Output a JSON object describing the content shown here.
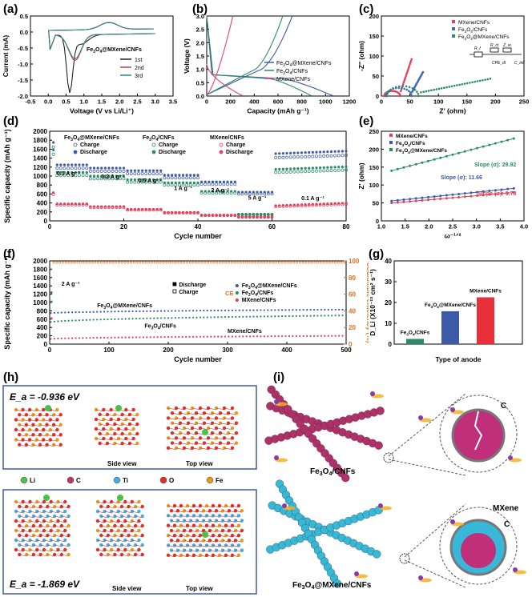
{
  "panel_labels": [
    "(a)",
    "(b)",
    "(c)",
    "(d)",
    "(e)",
    "(f)",
    "(g)",
    "(h)",
    "(i)"
  ],
  "chart_data": [
    {
      "id": "a",
      "type": "line",
      "xlabel": "Voltage (V vs Li/Li⁺)",
      "ylabel": "Current (mA)",
      "xlim": [
        -0.5,
        3.5
      ],
      "ylim": [
        -2.0,
        0.5
      ],
      "xticks": [
        "-0.5",
        "0.0",
        "0.5",
        "1.0",
        "1.5",
        "2.0",
        "2.5",
        "3.0",
        "3.5"
      ],
      "yticks": [
        "0.5",
        "0.0",
        "-0.5",
        "-1.0",
        "-1.5",
        "-2.0"
      ],
      "annotation": "Fe3O4@MXene/CNFs",
      "series": [
        {
          "name": "1st",
          "color": "#222222",
          "kind": "cv1"
        },
        {
          "name": "2nd",
          "color": "#d63a3a",
          "kind": "cv2"
        },
        {
          "name": "3rd",
          "color": "#2e8a8a",
          "kind": "cv3"
        }
      ]
    },
    {
      "id": "b",
      "type": "line",
      "xlabel": "Capacity (mAh g⁻¹)",
      "ylabel": "Voltage (V)",
      "xlim": [
        0,
        1200
      ],
      "ylim": [
        0,
        3.0
      ],
      "xticks": [
        "0",
        "200",
        "400",
        "600",
        "800",
        "1000",
        "1200"
      ],
      "yticks": [
        "0.0",
        "0.5",
        "1.0",
        "1.5",
        "2.0",
        "2.5",
        "3.0"
      ],
      "series": [
        {
          "name": "Fe3O4@MXene/CNFs",
          "color": "#3d5aa8",
          "charge_end": 720,
          "discharge_end": 1060
        },
        {
          "name": "Fe3O4/CNFs",
          "color": "#2a8a6a",
          "charge_end": 640,
          "discharge_end": 880
        },
        {
          "name": "MXene/CNFs",
          "color": "#e0407a",
          "charge_end": 220,
          "discharge_end": 300
        }
      ]
    },
    {
      "id": "c",
      "type": "scatter",
      "xlabel": "Z' (ohm)",
      "ylabel": "-Z'' (ohm)",
      "xlim": [
        0,
        250
      ],
      "ylim": [
        0,
        200
      ],
      "xticks": [
        "0",
        "50",
        "100",
        "150",
        "200",
        "250"
      ],
      "yticks": [
        "0",
        "50",
        "100",
        "150",
        "200"
      ],
      "circuit_labels": [
        "R_f",
        "R_ct",
        "Z_w",
        "CPE_dl",
        "C_int"
      ],
      "series": [
        {
          "name": "MXene/CNFs",
          "color": "#e0405a"
        },
        {
          "name": "Fe3O4/CNFs",
          "color": "#3d6ab8"
        },
        {
          "name": "Fe3O4@MXene/CNFs",
          "color": "#2a8a6a"
        }
      ]
    },
    {
      "id": "d",
      "type": "scatter",
      "xlabel": "Cycle number",
      "ylabel": "Specific capacity (mAh g⁻¹)",
      "xlim": [
        0,
        80
      ],
      "ylim": [
        0,
        2000
      ],
      "xticks": [
        "0",
        "20",
        "40",
        "60",
        "80"
      ],
      "yticks": [
        "0",
        "200",
        "400",
        "600",
        "800",
        "1000",
        "1200",
        "1400",
        "1600",
        "1800",
        "2000"
      ],
      "rate_labels": [
        "0.1 A g⁻¹",
        "0.2 A g⁻¹",
        "0.5 A g⁻¹",
        "1 A g⁻¹",
        "2 A g⁻¹",
        "5 A g⁻¹",
        "0.1 A g⁻¹"
      ],
      "groups": [
        "Fe3O4@MXene/CNFs",
        "Fe3O4/CNFs",
        "MXene/CNFs"
      ],
      "legend_entries": [
        "Charge",
        "Discharge"
      ],
      "step_values": {
        "Fe3O4@MXene/CNFs": [
          1250,
          1180,
          1120,
          1020,
          870,
          640,
          1500
        ],
        "Fe3O4/CNFs": [
          1080,
          1000,
          920,
          850,
          660,
          150,
          1150
        ],
        "MXene/CNFs": [
          380,
          320,
          260,
          190,
          130,
          90,
          340
        ]
      },
      "colors": {
        "Fe3O4@MXene/CNFs": "#3d5aa8",
        "Fe3O4/CNFs": "#2a8a6a",
        "MXene/CNFs": "#e0405a"
      }
    },
    {
      "id": "e",
      "type": "scatter",
      "xlabel": "ω⁻¹ᐟ²",
      "ylabel": "Z' (ohm)",
      "xlim": [
        0.75,
        4.25
      ],
      "ylim": [
        0,
        250
      ],
      "xticks": [
        "1.0",
        "1.5",
        "2.0",
        "2.5",
        "3.0",
        "3.5",
        "4.0"
      ],
      "yticks": [
        "0",
        "50",
        "100",
        "150",
        "200",
        "250"
      ],
      "series": [
        {
          "name": "MXene/CNFs",
          "color": "#e0405a",
          "intercept": 40,
          "slope": 9.78,
          "slope_label": "Slope (σ): 9.78"
        },
        {
          "name": "Fe3O4/CNFs",
          "color": "#3d5aa8",
          "intercept": 44,
          "slope": 11.66,
          "slope_label": "Slope (σ): 11.66"
        },
        {
          "name": "Fe3O4@MXene/CNFs",
          "color": "#2a8a6a",
          "intercept": 110,
          "slope": 29.92,
          "slope_label": "Slope (σ): 29.92"
        }
      ]
    },
    {
      "id": "f",
      "type": "scatter",
      "xlabel": "Cycle number",
      "ylabel": "Specific capacity (mAh g⁻¹)",
      "y2label": "Coulombic efficiency (%)",
      "xlim": [
        0,
        500
      ],
      "ylim": [
        0,
        2000
      ],
      "y2lim": [
        0,
        100
      ],
      "xticks": [
        "0",
        "100",
        "200",
        "300",
        "400",
        "500"
      ],
      "yticks": [
        "0",
        "200",
        "400",
        "600",
        "800",
        "1000",
        "1200",
        "1400",
        "1600",
        "1800",
        "2000"
      ],
      "y2ticks": [
        "0",
        "20",
        "40",
        "60",
        "80",
        "100"
      ],
      "rate_label": "2 A g⁻¹",
      "legend_left": [
        "Discharge",
        "Charge"
      ],
      "legend_ce": "CE",
      "legend_right": [
        "Fe3O4@MXene/CNFs",
        "Fe3O4/CNFs",
        "MXene/CNFs"
      ],
      "series": [
        {
          "name": "Fe3O4@MXene/CNFs",
          "color": "#3d5aa8",
          "start": 740,
          "end": 830
        },
        {
          "name": "Fe3O4/CNFs",
          "color": "#2a8a6a",
          "start": 520,
          "end": 690
        },
        {
          "name": "MXene/CNFs",
          "color": "#e0405a",
          "start": 120,
          "end": 200
        }
      ],
      "ce_value": 98
    },
    {
      "id": "g",
      "type": "bar",
      "xlabel": "Type of anode",
      "ylabel": "D_Li (X10⁻¹³ cm² s⁻¹)",
      "ylim": [
        0,
        40
      ],
      "yticks": [
        "0",
        "10",
        "20",
        "30",
        "40"
      ],
      "categories": [
        "Fe3O4/CNFs",
        "Fe3O4@MXene/CNFs",
        "MXene/CNFs"
      ],
      "values": [
        2.5,
        15.8,
        22.5
      ],
      "colors": [
        "#2a8a6a",
        "#3d5aa8",
        "#e8303a"
      ]
    }
  ],
  "panel_h": {
    "top_energy": "E_a = -0.936 eV",
    "bottom_energy": "E_a = -1.869 eV",
    "views": [
      "Side view",
      "Top view"
    ],
    "legend": [
      {
        "label": "Li",
        "color": "#4cc04c"
      },
      {
        "label": "C",
        "color": "#b23a6a"
      },
      {
        "label": "Ti",
        "color": "#4aa8e0"
      },
      {
        "label": "O",
        "color": "#e0302a"
      },
      {
        "label": "Fe",
        "color": "#e09a20"
      }
    ]
  },
  "panel_i": {
    "top_label": "Fe3O4/CNFs",
    "bottom_label": "Fe3O4@MXene/CNFs",
    "callouts": [
      "C",
      "MXene",
      "C"
    ]
  }
}
